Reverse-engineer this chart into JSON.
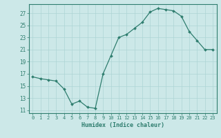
{
  "x": [
    0,
    1,
    2,
    3,
    4,
    5,
    6,
    7,
    8,
    9,
    10,
    11,
    12,
    13,
    14,
    15,
    16,
    17,
    18,
    19,
    20,
    21,
    22,
    23
  ],
  "y": [
    16.5,
    16.2,
    16.0,
    15.8,
    14.5,
    12.0,
    12.5,
    11.5,
    11.3,
    17.0,
    20.0,
    23.0,
    23.5,
    24.5,
    25.5,
    27.2,
    27.8,
    27.6,
    27.4,
    26.5,
    24.0,
    22.5,
    21.0,
    21.0
  ],
  "line_color": "#2e7d6e",
  "marker_color": "#2e7d6e",
  "bg_color": "#cce8e8",
  "grid_color": "#add4d4",
  "tick_color": "#2e7d6e",
  "xlabel": "Humidex (Indice chaleur)",
  "xlim": [
    -0.5,
    23.5
  ],
  "ylim": [
    10.5,
    28.5
  ],
  "yticks": [
    11,
    13,
    15,
    17,
    19,
    21,
    23,
    25,
    27
  ],
  "xticks": [
    0,
    1,
    2,
    3,
    4,
    5,
    6,
    7,
    8,
    9,
    10,
    11,
    12,
    13,
    14,
    15,
    16,
    17,
    18,
    19,
    20,
    21,
    22,
    23
  ],
  "figsize": [
    3.2,
    2.0
  ],
  "dpi": 100
}
